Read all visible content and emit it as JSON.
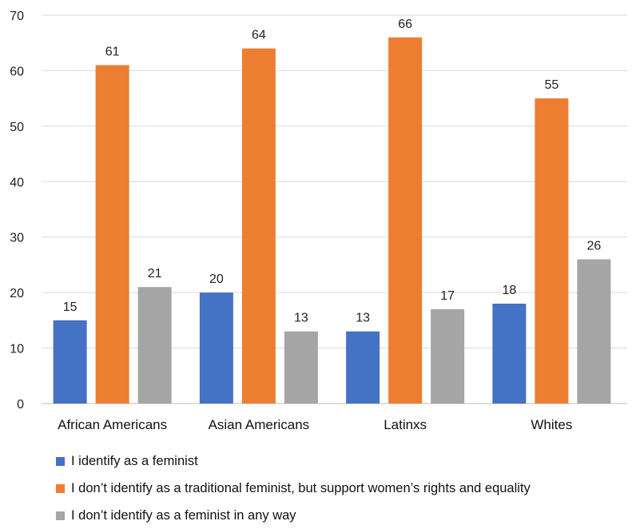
{
  "chart_data": {
    "type": "bar",
    "categories": [
      "African Americans",
      "Asian Americans",
      "Latinxs",
      "Whites"
    ],
    "series": [
      {
        "name": "I identify as a feminist",
        "color": "#4472C4",
        "values": [
          15,
          20,
          13,
          18
        ]
      },
      {
        "name": "I don’t identify as a traditional feminist, but support women’s rights and equality",
        "color": "#ED7D31",
        "values": [
          61,
          64,
          66,
          55
        ]
      },
      {
        "name": "I don’t identify as a feminist in any way",
        "color": "#A5A5A5",
        "values": [
          21,
          13,
          17,
          26
        ]
      }
    ],
    "y_ticks": [
      0,
      10,
      20,
      30,
      40,
      50,
      60,
      70
    ],
    "ylim": [
      0,
      70
    ],
    "grid": true,
    "legend_position": "bottom-left",
    "data_labels": true
  }
}
